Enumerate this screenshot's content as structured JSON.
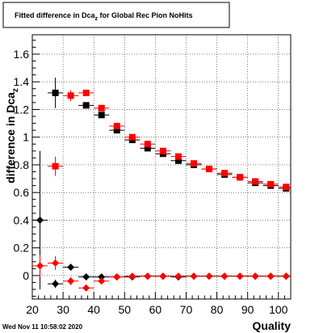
{
  "chart_data": {
    "type": "scatter",
    "title": "Fitted difference in Dca",
    "title_sub": "z",
    "title_suffix": " for Global Rec Pion NoHits",
    "xlabel": "Quality",
    "ylabel": "difference in Dca",
    "ylabel_sub": "z",
    "xlim": [
      20,
      104
    ],
    "ylim": [
      -0.17,
      1.74
    ],
    "x_ticks": [
      20,
      30,
      40,
      50,
      60,
      70,
      80,
      90,
      100
    ],
    "y_ticks": [
      0,
      0.2,
      0.4,
      0.6,
      0.8,
      1,
      1.2,
      1.4,
      1.6
    ],
    "y_tick_labels": [
      "0",
      "0.2",
      "0.4",
      "0.6",
      "0.8",
      "1",
      "1.2",
      "1.4",
      "1.6"
    ],
    "grid": true,
    "timestamp": "Wed Nov 11 10:58:02 2020",
    "series": [
      {
        "marker": "square",
        "color": "#000000",
        "points": [
          {
            "x": 27.5,
            "y": 1.32,
            "err": 0.11
          },
          {
            "x": 37.5,
            "y": 1.23,
            "err": 0.02
          },
          {
            "x": 42.5,
            "y": 1.16,
            "err": 0.015
          },
          {
            "x": 47.5,
            "y": 1.05,
            "err": 0.01
          },
          {
            "x": 52.5,
            "y": 0.98,
            "err": 0.01
          },
          {
            "x": 57.5,
            "y": 0.92,
            "err": 0.01
          },
          {
            "x": 62.5,
            "y": 0.88,
            "err": 0.01
          },
          {
            "x": 67.5,
            "y": 0.83,
            "err": 0.01
          },
          {
            "x": 72.5,
            "y": 0.8,
            "err": 0.01
          },
          {
            "x": 77.5,
            "y": 0.77,
            "err": 0.01
          },
          {
            "x": 82.5,
            "y": 0.73,
            "err": 0.01
          },
          {
            "x": 87.5,
            "y": 0.71,
            "err": 0.01
          },
          {
            "x": 92.5,
            "y": 0.67,
            "err": 0.01
          },
          {
            "x": 97.5,
            "y": 0.65,
            "err": 0.01
          },
          {
            "x": 102.5,
            "y": 0.63,
            "err": 0.01
          }
        ]
      },
      {
        "marker": "square",
        "color": "#ff0000",
        "points": [
          {
            "x": 27.5,
            "y": 0.79,
            "err": 0.07
          },
          {
            "x": 32.5,
            "y": 1.3,
            "err": 0.04
          },
          {
            "x": 37.5,
            "y": 1.32,
            "err": 0.02
          },
          {
            "x": 42.5,
            "y": 1.21,
            "err": 0.02
          },
          {
            "x": 47.5,
            "y": 1.08,
            "err": 0.01
          },
          {
            "x": 52.5,
            "y": 1.0,
            "err": 0.01
          },
          {
            "x": 57.5,
            "y": 0.95,
            "err": 0.01
          },
          {
            "x": 62.5,
            "y": 0.9,
            "err": 0.01
          },
          {
            "x": 67.5,
            "y": 0.86,
            "err": 0.01
          },
          {
            "x": 72.5,
            "y": 0.81,
            "err": 0.01
          },
          {
            "x": 77.5,
            "y": 0.77,
            "err": 0.01
          },
          {
            "x": 82.5,
            "y": 0.74,
            "err": 0.01
          },
          {
            "x": 87.5,
            "y": 0.71,
            "err": 0.01
          },
          {
            "x": 92.5,
            "y": 0.68,
            "err": 0.01
          },
          {
            "x": 97.5,
            "y": 0.66,
            "err": 0.01
          },
          {
            "x": 102.5,
            "y": 0.64,
            "err": 0.01
          }
        ]
      },
      {
        "marker": "diamond",
        "color": "#000000",
        "points": [
          {
            "x": 22.5,
            "y": 0.4,
            "err": 0.5
          },
          {
            "x": 27.5,
            "y": -0.06,
            "err": 0.03
          },
          {
            "x": 32.5,
            "y": 0.06,
            "err": 0.02
          },
          {
            "x": 37.5,
            "y": -0.01,
            "err": 0.01
          },
          {
            "x": 42.5,
            "y": -0.01,
            "err": 0.01
          },
          {
            "x": 47.5,
            "y": -0.01,
            "err": 0.005
          },
          {
            "x": 52.5,
            "y": -0.01,
            "err": 0.005
          },
          {
            "x": 57.5,
            "y": -0.005,
            "err": 0.005
          },
          {
            "x": 62.5,
            "y": -0.005,
            "err": 0.005
          },
          {
            "x": 67.5,
            "y": -0.01,
            "err": 0.005
          },
          {
            "x": 72.5,
            "y": -0.005,
            "err": 0.005
          },
          {
            "x": 77.5,
            "y": -0.005,
            "err": 0.005
          },
          {
            "x": 82.5,
            "y": -0.005,
            "err": 0.005
          },
          {
            "x": 87.5,
            "y": -0.005,
            "err": 0.005
          },
          {
            "x": 92.5,
            "y": -0.005,
            "err": 0.005
          },
          {
            "x": 97.5,
            "y": -0.005,
            "err": 0.005
          },
          {
            "x": 102.5,
            "y": -0.005,
            "err": 0.005
          }
        ]
      },
      {
        "marker": "diamond",
        "color": "#ff0000",
        "points": [
          {
            "x": 22.5,
            "y": 0.07,
            "err": 0.08
          },
          {
            "x": 27.5,
            "y": 0.09,
            "err": 0.05
          },
          {
            "x": 32.5,
            "y": -0.04,
            "err": 0.03
          },
          {
            "x": 37.5,
            "y": -0.09,
            "err": 0.02
          },
          {
            "x": 42.5,
            "y": -0.04,
            "err": 0.01
          },
          {
            "x": 47.5,
            "y": -0.01,
            "err": 0.005
          },
          {
            "x": 52.5,
            "y": -0.005,
            "err": 0.005
          },
          {
            "x": 57.5,
            "y": -0.005,
            "err": 0.005
          },
          {
            "x": 62.5,
            "y": -0.005,
            "err": 0.005
          },
          {
            "x": 67.5,
            "y": -0.005,
            "err": 0.005
          },
          {
            "x": 72.5,
            "y": -0.005,
            "err": 0.005
          },
          {
            "x": 77.5,
            "y": -0.005,
            "err": 0.005
          },
          {
            "x": 82.5,
            "y": -0.005,
            "err": 0.005
          },
          {
            "x": 87.5,
            "y": -0.005,
            "err": 0.005
          },
          {
            "x": 92.5,
            "y": -0.005,
            "err": 0.005
          },
          {
            "x": 97.5,
            "y": -0.005,
            "err": 0.005
          },
          {
            "x": 102.5,
            "y": -0.005,
            "err": 0.005
          }
        ]
      }
    ]
  }
}
